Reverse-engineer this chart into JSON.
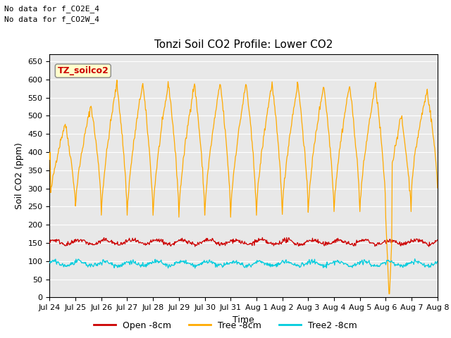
{
  "title": "Tonzi Soil CO2 Profile: Lower CO2",
  "xlabel": "Time",
  "ylabel": "Soil CO2 (ppm)",
  "ylim": [
    0,
    670
  ],
  "yticks": [
    0,
    50,
    100,
    150,
    200,
    250,
    300,
    350,
    400,
    450,
    500,
    550,
    600,
    650
  ],
  "note1": "No data for f_CO2E_4",
  "note2": "No data for f_CO2W_4",
  "watermark": "TZ_soilco2",
  "legend_labels": [
    "Open -8cm",
    "Tree -8cm",
    "Tree2 -8cm"
  ],
  "open_color": "#cc0000",
  "tree_color": "#ffaa00",
  "tree2_color": "#00ccdd",
  "bg_color": "#e8e8e8",
  "tick_labels": [
    "Jul 24",
    "Jul 25",
    "Jul 26",
    "Jul 27",
    "Jul 28",
    "Jul 29",
    "Jul 30",
    "Jul 31",
    "Aug 1",
    "Aug 2",
    "Aug 3",
    "Aug 4",
    "Aug 5",
    "Aug 6",
    "Aug 7",
    "Aug 8"
  ]
}
